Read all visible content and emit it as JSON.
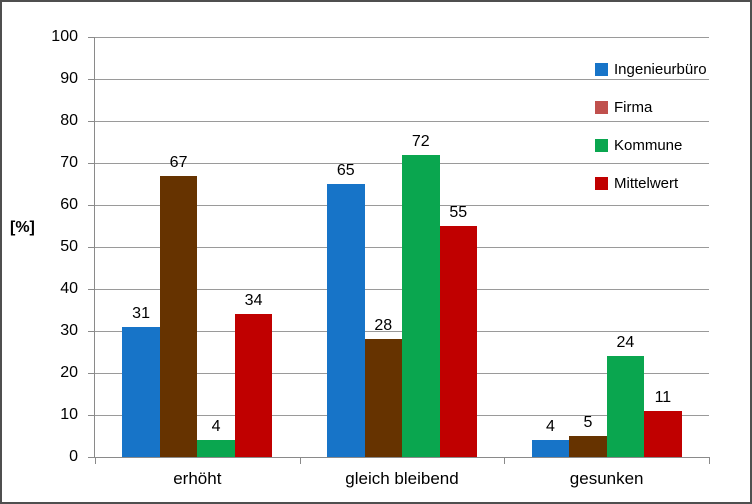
{
  "frame": {
    "background": "#ffffff",
    "border_color": "#4f4f4f"
  },
  "chart_data": {
    "type": "bar",
    "title": "",
    "xlabel": "",
    "ylabel": "[%]",
    "categories": [
      "erhöht",
      "gleich bleibend",
      "gesunken"
    ],
    "series": [
      {
        "name": "Ingenieurbüro",
        "bar_color": "#1774C8",
        "legend_color": "#1774C8",
        "values": [
          31,
          65,
          4
        ]
      },
      {
        "name": "Firma",
        "bar_color": "#663300",
        "legend_color": "#C0504D",
        "values": [
          67,
          28,
          5
        ]
      },
      {
        "name": "Kommune",
        "bar_color": "#0AA64F",
        "legend_color": "#0AA64F",
        "values": [
          4,
          72,
          24
        ]
      },
      {
        "name": "Mittelwert",
        "bar_color": "#C00000",
        "legend_color": "#C00000",
        "values": [
          34,
          55,
          11
        ]
      }
    ],
    "ylim": [
      0,
      100
    ],
    "yticks": [
      0,
      10,
      20,
      30,
      40,
      50,
      60,
      70,
      80,
      90,
      100
    ],
    "grid": true,
    "legend_position": "right",
    "data_labels": true
  }
}
